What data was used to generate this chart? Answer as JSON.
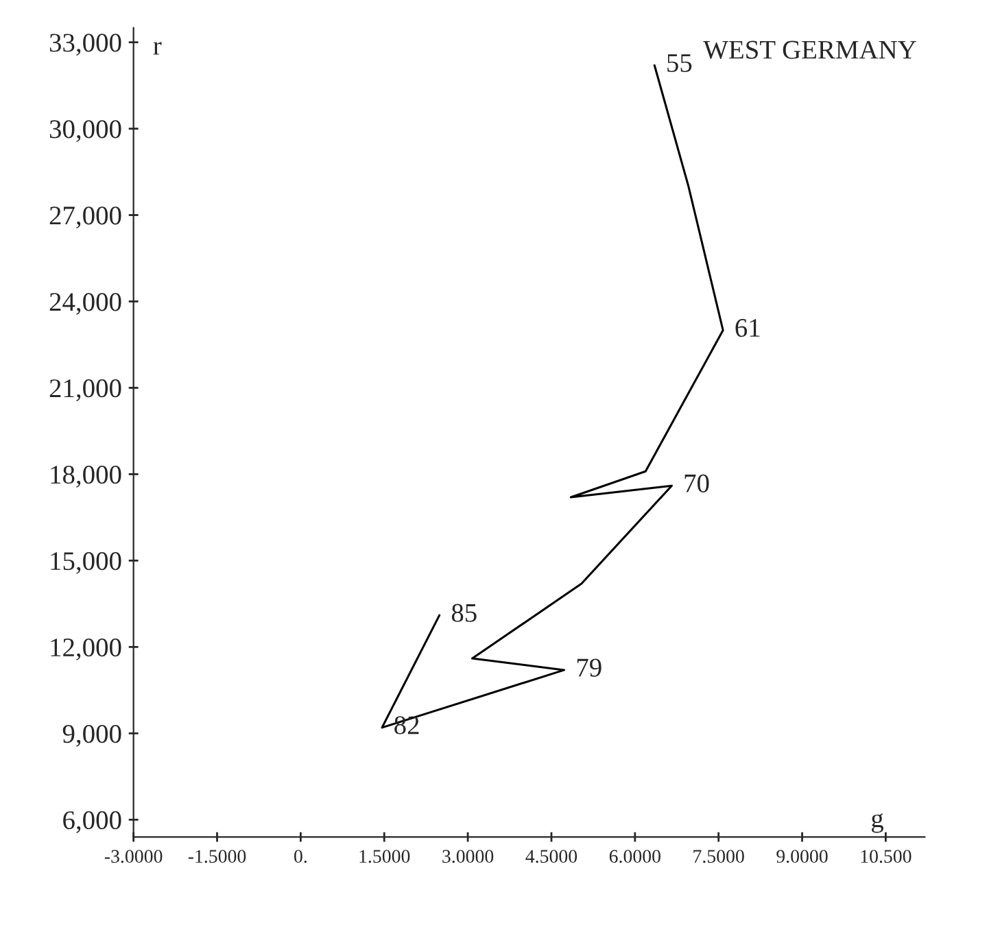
{
  "chart_data": {
    "type": "line",
    "title": "WEST GERMANY",
    "xlabel": "g",
    "ylabel": "r",
    "x": [
      6.35,
      6.96,
      7.58,
      6.19,
      4.85,
      6.66,
      5.04,
      3.08,
      4.73,
      1.46,
      2.49
    ],
    "series": [
      {
        "color": "#000000",
        "values": [
          32200,
          28000,
          23000,
          18100,
          17200,
          17600,
          14200,
          11600,
          11200,
          9200,
          13100
        ]
      }
    ],
    "xlim": [
      -3,
      11.2
    ],
    "ylim": [
      5400,
      33500
    ],
    "xticks": [
      {
        "value": -3,
        "label": "-3.0000"
      },
      {
        "value": -1.5,
        "label": "-1.5000"
      },
      {
        "value": 0,
        "label": "0."
      },
      {
        "value": 1.5,
        "label": "1.5000"
      },
      {
        "value": 3,
        "label": "3.0000"
      },
      {
        "value": 4.5,
        "label": "4.5000"
      },
      {
        "value": 6,
        "label": "6.0000"
      },
      {
        "value": 7.5,
        "label": "7.5000"
      },
      {
        "value": 9,
        "label": "9.0000"
      },
      {
        "value": 10.5,
        "label": "10.500"
      }
    ],
    "yticks": [
      {
        "value": 6000,
        "label": "6,000"
      },
      {
        "value": 9000,
        "label": "9,000"
      },
      {
        "value": 12000,
        "label": "12,000"
      },
      {
        "value": 15000,
        "label": "15,000"
      },
      {
        "value": 18000,
        "label": "18,000"
      },
      {
        "value": 21000,
        "label": "21,000"
      },
      {
        "value": 24000,
        "label": "24,000"
      },
      {
        "value": 27000,
        "label": "27,000"
      },
      {
        "value": 30000,
        "label": "30,000"
      },
      {
        "value": 33000,
        "label": "33,000"
      }
    ],
    "annotations": [
      {
        "text": "55",
        "x": 6.35,
        "y": 32200
      },
      {
        "text": "61",
        "x": 7.58,
        "y": 23000
      },
      {
        "text": "70",
        "x": 6.66,
        "y": 17600
      },
      {
        "text": "79",
        "x": 4.73,
        "y": 11200
      },
      {
        "text": "82",
        "x": 1.46,
        "y": 9200
      },
      {
        "text": "85",
        "x": 2.49,
        "y": 13100
      }
    ],
    "grid": false,
    "legend": false,
    "marker": "none",
    "line_style": "solid"
  }
}
